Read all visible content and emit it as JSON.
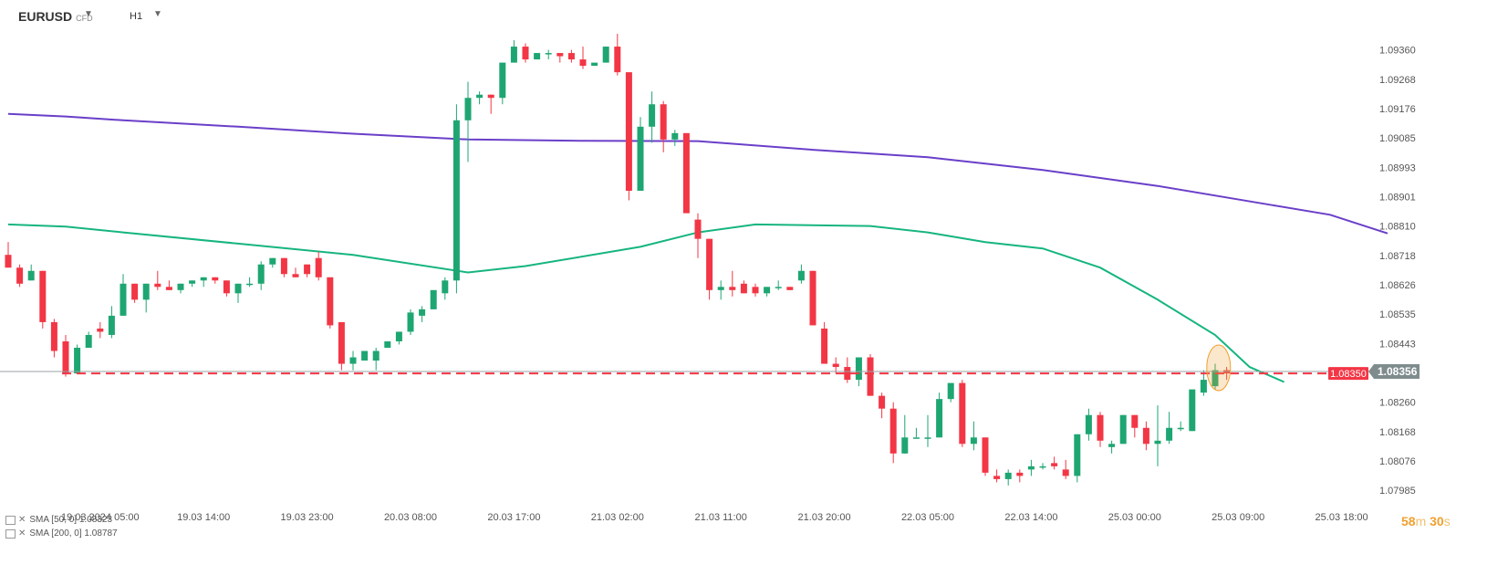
{
  "header": {
    "symbol": "EURUSD",
    "symbol_sub": "CFD",
    "timeframe": "H1"
  },
  "legend": [
    {
      "label": "SMA [50, 0] 1.08323"
    },
    {
      "label": "SMA [200, 0] 1.08787"
    }
  ],
  "timer": {
    "minutes": "58",
    "min_unit": "m",
    "seconds": "30",
    "sec_unit": "s"
  },
  "chart_data": {
    "type": "candlestick",
    "ylim": [
      1.0792,
      1.0943
    ],
    "y_ticks": [
      "1.09360",
      "1.09268",
      "1.09176",
      "1.09085",
      "1.08993",
      "1.08901",
      "1.08810",
      "1.08718",
      "1.08626",
      "1.08535",
      "1.08443",
      "1.08352",
      "1.08260",
      "1.08168",
      "1.08076",
      "1.07985"
    ],
    "x_ticks": [
      {
        "i": 8,
        "label": "19.03.2024  05:00"
      },
      {
        "i": 17,
        "label": "19.03  14:00"
      },
      {
        "i": 26,
        "label": "19.03  23:00"
      },
      {
        "i": 35,
        "label": "20.03  08:00"
      },
      {
        "i": 44,
        "label": "20.03  17:00"
      },
      {
        "i": 53,
        "label": "21.03  02:00"
      },
      {
        "i": 62,
        "label": "21.03  11:00"
      },
      {
        "i": 71,
        "label": "21.03  20:00"
      },
      {
        "i": 80,
        "label": "22.03  05:00"
      },
      {
        "i": 89,
        "label": "22.03  14:00"
      },
      {
        "i": 98,
        "label": "25.03  00:00"
      },
      {
        "i": 107,
        "label": "25.03  09:00"
      },
      {
        "i": 116,
        "label": "25.03  18:00"
      }
    ],
    "candles": [
      [
        1.0872,
        1.0876,
        1.0869,
        1.0868
      ],
      [
        1.0868,
        1.0869,
        1.0862,
        1.0863
      ],
      [
        1.0864,
        1.0869,
        1.0864,
        1.0867
      ],
      [
        1.0867,
        1.0867,
        1.0849,
        1.0851
      ],
      [
        1.0851,
        1.0852,
        1.084,
        1.0842
      ],
      [
        1.0845,
        1.0847,
        1.0834,
        1.0835
      ],
      [
        1.0835,
        1.0844,
        1.0835,
        1.0843
      ],
      [
        1.0843,
        1.0848,
        1.0843,
        1.0847
      ],
      [
        1.0849,
        1.0851,
        1.0846,
        1.0848
      ],
      [
        1.0847,
        1.0856,
        1.0846,
        1.0853
      ],
      [
        1.0853,
        1.0866,
        1.0853,
        1.0863
      ],
      [
        1.0863,
        1.0863,
        1.0857,
        1.0858
      ],
      [
        1.0858,
        1.0863,
        1.0854,
        1.0863
      ],
      [
        1.0863,
        1.0867,
        1.0861,
        1.0862
      ],
      [
        1.0862,
        1.0864,
        1.0861,
        1.0861
      ],
      [
        1.0861,
        1.0863,
        1.086,
        1.0863
      ],
      [
        1.0863,
        1.0864,
        1.0862,
        1.0864
      ],
      [
        1.0864,
        1.0865,
        1.0862,
        1.0865
      ],
      [
        1.0865,
        1.0865,
        1.0863,
        1.0864
      ],
      [
        1.0864,
        1.0864,
        1.0859,
        1.086
      ],
      [
        1.086,
        1.0863,
        1.0857,
        1.0863
      ],
      [
        1.0863,
        1.0865,
        1.0862,
        1.0863
      ],
      [
        1.0863,
        1.087,
        1.0861,
        1.0869
      ],
      [
        1.0869,
        1.0871,
        1.0868,
        1.0871
      ],
      [
        1.0871,
        1.0871,
        1.0865,
        1.0866
      ],
      [
        1.0866,
        1.0868,
        1.0865,
        1.0865
      ],
      [
        1.0869,
        1.0869,
        1.0865,
        1.0866
      ],
      [
        1.0871,
        1.0873,
        1.0864,
        1.0865
      ],
      [
        1.0865,
        1.0865,
        1.0849,
        1.085
      ],
      [
        1.0851,
        1.0851,
        1.0836,
        1.0838
      ],
      [
        1.0838,
        1.0842,
        1.0836,
        1.084
      ],
      [
        1.0839,
        1.0842,
        1.0839,
        1.0842
      ],
      [
        1.0839,
        1.0843,
        1.0836,
        1.0842
      ],
      [
        1.0843,
        1.0845,
        1.0843,
        1.0845
      ],
      [
        1.0845,
        1.0848,
        1.0844,
        1.0848
      ],
      [
        1.0848,
        1.0855,
        1.0847,
        1.0854
      ],
      [
        1.0853,
        1.0856,
        1.0851,
        1.0855
      ],
      [
        1.0855,
        1.0861,
        1.0855,
        1.0861
      ],
      [
        1.086,
        1.0865,
        1.0858,
        1.0864
      ],
      [
        1.0864,
        1.0919,
        1.086,
        1.0914
      ],
      [
        1.0914,
        1.0926,
        1.0901,
        1.0921
      ],
      [
        1.0921,
        1.0923,
        1.0919,
        1.0922
      ],
      [
        1.0922,
        1.0922,
        1.0916,
        1.0921
      ],
      [
        1.0921,
        1.0932,
        1.0919,
        1.0932
      ],
      [
        1.0932,
        1.0939,
        1.0932,
        1.0937
      ],
      [
        1.0937,
        1.0938,
        1.0932,
        1.0933
      ],
      [
        1.0933,
        1.0935,
        1.0933,
        1.0935
      ],
      [
        1.0935,
        1.0936,
        1.0933,
        1.0935
      ],
      [
        1.0935,
        1.0935,
        1.0932,
        1.0934
      ],
      [
        1.0935,
        1.0936,
        1.0932,
        1.0933
      ],
      [
        1.0933,
        1.0937,
        1.093,
        1.0931
      ],
      [
        1.0931,
        1.0931,
        1.0931,
        1.0932
      ],
      [
        1.0932,
        1.0937,
        1.0932,
        1.0937
      ],
      [
        1.0937,
        1.0941,
        1.0928,
        1.0929
      ],
      [
        1.0929,
        1.0929,
        1.0889,
        1.0892
      ],
      [
        1.0892,
        1.0915,
        1.0892,
        1.0912
      ],
      [
        1.0912,
        1.0923,
        1.0907,
        1.0919
      ],
      [
        1.0919,
        1.092,
        1.0904,
        1.0908
      ],
      [
        1.0908,
        1.0911,
        1.0906,
        1.091
      ],
      [
        1.091,
        1.091,
        1.0885,
        1.0885
      ],
      [
        1.0883,
        1.0885,
        1.0871,
        1.0877
      ],
      [
        1.0877,
        1.0877,
        1.0858,
        1.0861
      ],
      [
        1.0861,
        1.0864,
        1.0858,
        1.0862
      ],
      [
        1.0862,
        1.0867,
        1.0859,
        1.0861
      ],
      [
        1.0863,
        1.0864,
        1.086,
        1.086
      ],
      [
        1.0862,
        1.0863,
        1.0859,
        1.086
      ],
      [
        1.086,
        1.0862,
        1.0859,
        1.0862
      ],
      [
        1.0862,
        1.0864,
        1.0861,
        1.0862
      ],
      [
        1.0862,
        1.0862,
        1.0861,
        1.0861
      ],
      [
        1.0864,
        1.0869,
        1.0863,
        1.0867
      ],
      [
        1.0867,
        1.0867,
        1.085,
        1.085
      ],
      [
        1.0849,
        1.0851,
        1.0838,
        1.0838
      ],
      [
        1.0838,
        1.084,
        1.0835,
        1.0837
      ],
      [
        1.0837,
        1.084,
        1.0832,
        1.0833
      ],
      [
        1.0833,
        1.084,
        1.0831,
        1.084
      ],
      [
        1.084,
        1.0841,
        1.0828,
        1.0828
      ],
      [
        1.0828,
        1.0829,
        1.0821,
        1.0824
      ],
      [
        1.0824,
        1.0826,
        1.0807,
        1.081
      ],
      [
        1.081,
        1.0822,
        1.081,
        1.0815
      ],
      [
        1.0815,
        1.0818,
        1.0815,
        1.0815
      ],
      [
        1.0815,
        1.0822,
        1.0812,
        1.0815
      ],
      [
        1.0815,
        1.0829,
        1.0815,
        1.0827
      ],
      [
        1.0827,
        1.0832,
        1.0826,
        1.0832
      ],
      [
        1.0832,
        1.0833,
        1.0812,
        1.0813
      ],
      [
        1.0813,
        1.082,
        1.0811,
        1.0815
      ],
      [
        1.0815,
        1.0815,
        1.0803,
        1.0804
      ],
      [
        1.0803,
        1.0805,
        1.0801,
        1.0802
      ],
      [
        1.0802,
        1.0805,
        1.08,
        1.0804
      ],
      [
        1.0804,
        1.0805,
        1.0801,
        1.0803
      ],
      [
        1.0805,
        1.0808,
        1.0803,
        1.0806
      ],
      [
        1.0806,
        1.0807,
        1.0805,
        1.0806
      ],
      [
        1.0807,
        1.0809,
        1.0805,
        1.0806
      ],
      [
        1.0805,
        1.0808,
        1.0802,
        1.0803
      ],
      [
        1.0803,
        1.0816,
        1.0801,
        1.0816
      ],
      [
        1.0816,
        1.0824,
        1.0814,
        1.0822
      ],
      [
        1.0822,
        1.0823,
        1.0812,
        1.0814
      ],
      [
        1.0812,
        1.0814,
        1.081,
        1.0813
      ],
      [
        1.0813,
        1.0822,
        1.0813,
        1.0822
      ],
      [
        1.0822,
        1.0822,
        1.0815,
        1.0818
      ],
      [
        1.0818,
        1.082,
        1.0811,
        1.0813
      ],
      [
        1.0813,
        1.0825,
        1.0806,
        1.0814
      ],
      [
        1.0814,
        1.0823,
        1.0813,
        1.0818
      ],
      [
        1.0818,
        1.082,
        1.0817,
        1.0818
      ],
      [
        1.0817,
        1.083,
        1.0817,
        1.083
      ],
      [
        1.0829,
        1.0836,
        1.0828,
        1.0833
      ],
      [
        1.0831,
        1.0838,
        1.083,
        1.0836
      ],
      [
        1.0836,
        1.0837,
        1.0833,
        1.0835
      ]
    ],
    "sma50": [
      [
        0,
        1.08815
      ],
      [
        5,
        1.08808
      ],
      [
        10,
        1.0879
      ],
      [
        20,
        1.08755
      ],
      [
        30,
        1.0872
      ],
      [
        40,
        1.08665
      ],
      [
        45,
        1.08685
      ],
      [
        55,
        1.08745
      ],
      [
        60,
        1.0879
      ],
      [
        65,
        1.08815
      ],
      [
        75,
        1.0881
      ],
      [
        80,
        1.0879
      ],
      [
        85,
        1.0876
      ],
      [
        90,
        1.0874
      ],
      [
        95,
        1.0868
      ],
      [
        100,
        1.0858
      ],
      [
        105,
        1.0847
      ],
      [
        108,
        1.0837
      ],
      [
        111,
        1.08323
      ]
    ],
    "sma200": [
      [
        0,
        1.0916
      ],
      [
        5,
        1.09152
      ],
      [
        10,
        1.0914
      ],
      [
        20,
        1.0912
      ],
      [
        30,
        1.09098
      ],
      [
        40,
        1.0908
      ],
      [
        50,
        1.09076
      ],
      [
        60,
        1.09075
      ],
      [
        70,
        1.09048
      ],
      [
        80,
        1.09025
      ],
      [
        90,
        1.08985
      ],
      [
        100,
        1.08935
      ],
      [
        110,
        1.08875
      ],
      [
        115,
        1.08845
      ],
      [
        120,
        1.08787
      ]
    ],
    "current_price": 1.08356,
    "support_level": 1.0835,
    "current_price_label": "1.08356",
    "support_label": "1.08350",
    "colors": {
      "up": "#1ea672",
      "down": "#f23645",
      "sma50": "#16b57f",
      "sma200": "#6a3fc9",
      "support": "#f23645",
      "current": "#9aa0a6",
      "highlight": "#f0a030",
      "axis_text": "#555555"
    }
  }
}
